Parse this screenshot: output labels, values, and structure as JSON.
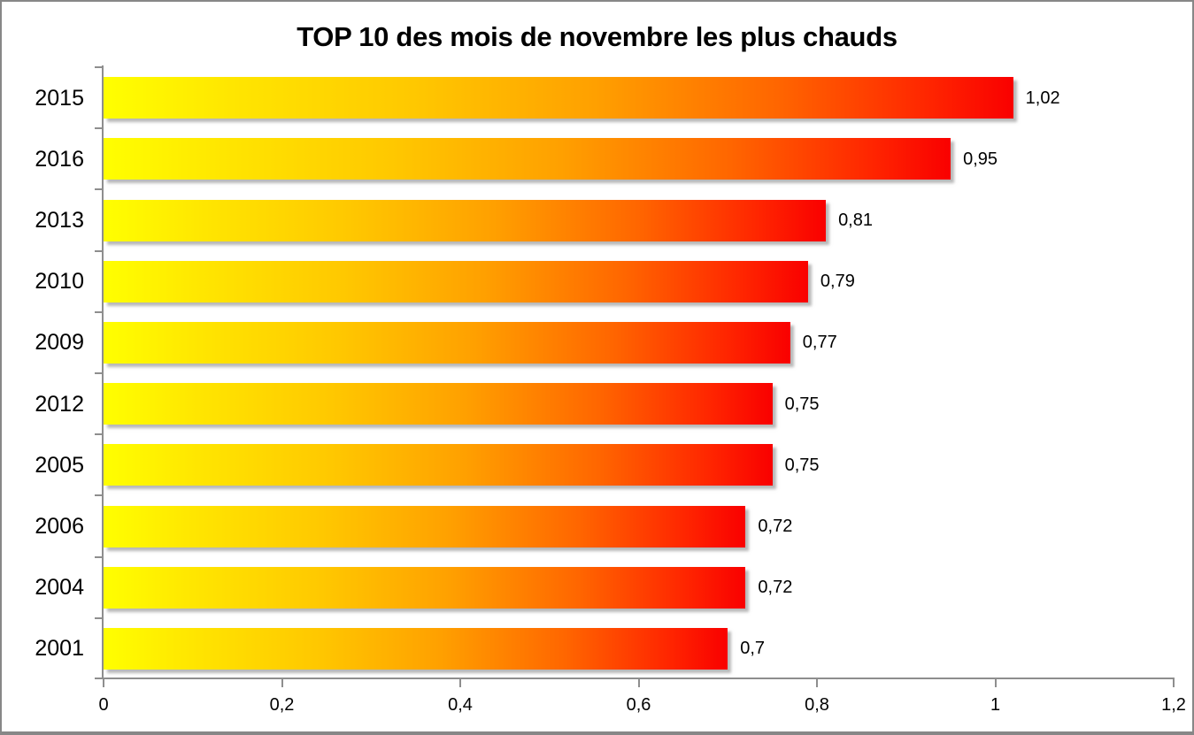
{
  "chart_data": {
    "type": "bar",
    "orientation": "horizontal",
    "title": "TOP 10 des mois de novembre les plus chauds",
    "categories": [
      "2015",
      "2016",
      "2013",
      "2010",
      "2009",
      "2012",
      "2005",
      "2006",
      "2004",
      "2001"
    ],
    "values": [
      1.02,
      0.95,
      0.81,
      0.79,
      0.77,
      0.75,
      0.75,
      0.72,
      0.72,
      0.7
    ],
    "value_labels": [
      "1,02",
      "0,95",
      "0,81",
      "0,79",
      "0,77",
      "0,75",
      "0,75",
      "0,72",
      "0,72",
      "0,7"
    ],
    "xlabel": "",
    "ylabel": "",
    "xlim": [
      0,
      1.2
    ],
    "x_tick_values": [
      0,
      0.2,
      0.4,
      0.6,
      0.8,
      1,
      1.2
    ],
    "x_tick_labels": [
      "0",
      "0,2",
      "0,4",
      "0,6",
      "0,8",
      "1",
      "1,2"
    ],
    "grid": false,
    "legend": "none",
    "decimal_separator": ",",
    "colors": {
      "bar_gradient_start": "#ffff00",
      "bar_gradient_mid": "#ff8000",
      "bar_gradient_end": "#f90000",
      "axis": "#8e8e8e",
      "text": "#000000",
      "background": "#ffffff",
      "frame_border": "#878787"
    }
  }
}
